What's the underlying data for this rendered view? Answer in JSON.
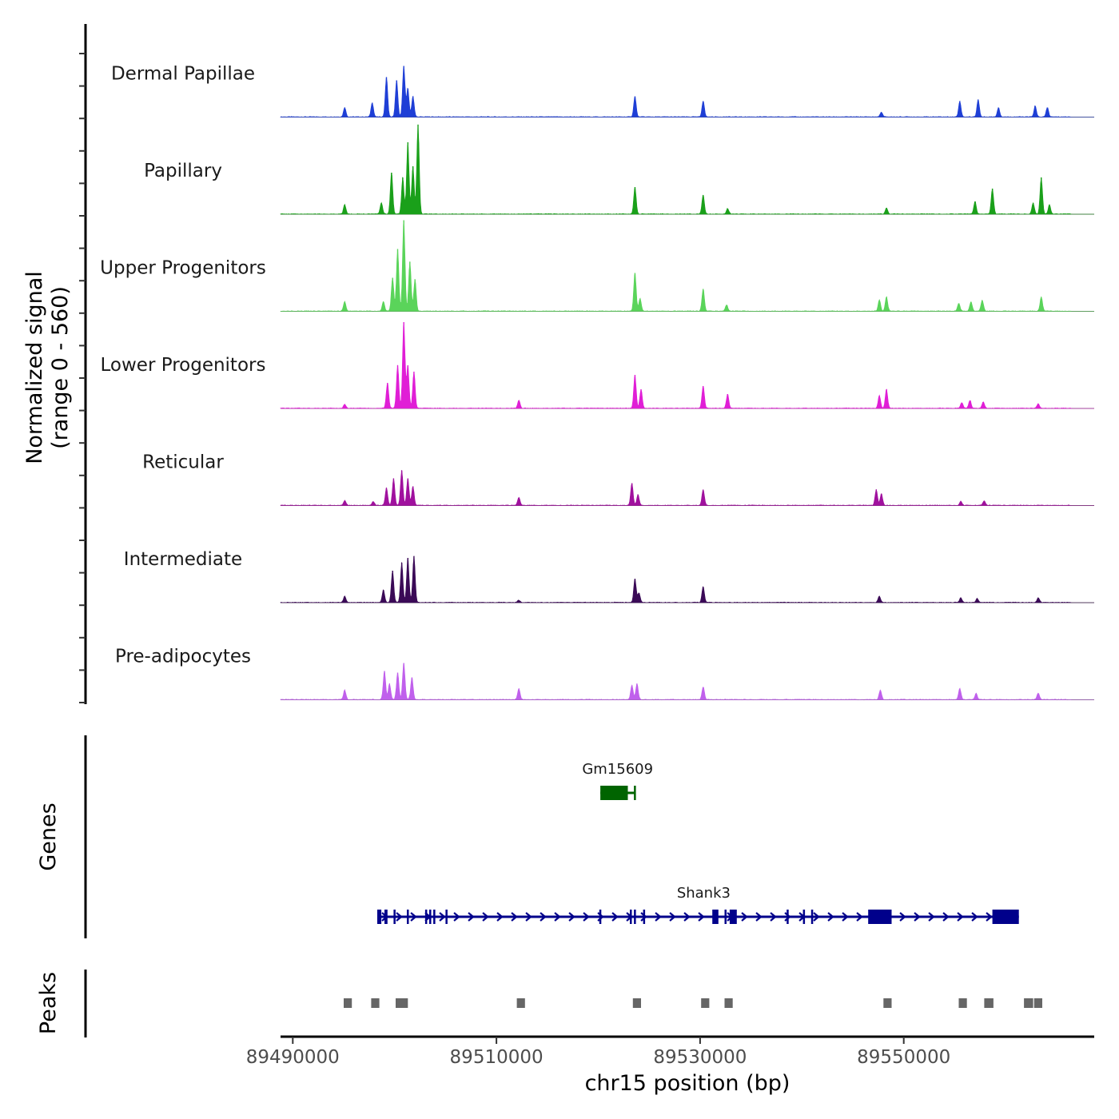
{
  "chart_data": {
    "type": "area",
    "title": "",
    "ylabel_line1": "Normalized signal",
    "ylabel_line2": "(range 0 - 560)",
    "ylim": [
      0,
      560
    ],
    "xlabel": "chr15 position (bp)",
    "xlim": [
      89488800,
      89568700
    ],
    "xticks": [
      89490000,
      89510000,
      89530000,
      89550000
    ],
    "xtick_labels": [
      "89490000",
      "89510000",
      "89530000",
      "89550000"
    ],
    "genes_label": "Genes",
    "peaks_label": "Peaks",
    "tracks": [
      {
        "name": "Dermal Papillae",
        "color": "#1f3fd6",
        "peaks": [
          [
            89495100,
            60
          ],
          [
            89497800,
            90
          ],
          [
            89499200,
            250
          ],
          [
            89500200,
            230
          ],
          [
            89500900,
            320
          ],
          [
            89501300,
            180
          ],
          [
            89501800,
            130
          ],
          [
            89523600,
            130
          ],
          [
            89530300,
            100
          ],
          [
            89547800,
            30
          ],
          [
            89555500,
            100
          ],
          [
            89557300,
            110
          ],
          [
            89559300,
            60
          ],
          [
            89562900,
            70
          ],
          [
            89564100,
            60
          ]
        ]
      },
      {
        "name": "Papillary",
        "color": "#1aa01a",
        "peaks": [
          [
            89495100,
            60
          ],
          [
            89498700,
            70
          ],
          [
            89499700,
            260
          ],
          [
            89500800,
            230
          ],
          [
            89501300,
            450
          ],
          [
            89501800,
            300
          ],
          [
            89502300,
            560
          ],
          [
            89523600,
            170
          ],
          [
            89530300,
            120
          ],
          [
            89532700,
            35
          ],
          [
            89548300,
            40
          ],
          [
            89557000,
            80
          ],
          [
            89558700,
            160
          ],
          [
            89562700,
            70
          ],
          [
            89563500,
            230
          ],
          [
            89564300,
            60
          ]
        ]
      },
      {
        "name": "Upper Progenitors",
        "color": "#5ad45a",
        "peaks": [
          [
            89495100,
            60
          ],
          [
            89498900,
            60
          ],
          [
            89499800,
            210
          ],
          [
            89500300,
            390
          ],
          [
            89500900,
            570
          ],
          [
            89501500,
            310
          ],
          [
            89502000,
            200
          ],
          [
            89523600,
            240
          ],
          [
            89524100,
            80
          ],
          [
            89530300,
            140
          ],
          [
            89532600,
            40
          ],
          [
            89547600,
            70
          ],
          [
            89548300,
            90
          ],
          [
            89555400,
            50
          ],
          [
            89556600,
            60
          ],
          [
            89557700,
            70
          ],
          [
            89563500,
            90
          ]
        ]
      },
      {
        "name": "Lower Progenitors",
        "color": "#e01ed6",
        "peaks": [
          [
            89495100,
            25
          ],
          [
            89499300,
            160
          ],
          [
            89500300,
            270
          ],
          [
            89500900,
            540
          ],
          [
            89501300,
            270
          ],
          [
            89501900,
            230
          ],
          [
            89512200,
            50
          ],
          [
            89523600,
            210
          ],
          [
            89524200,
            120
          ],
          [
            89530300,
            140
          ],
          [
            89532700,
            90
          ],
          [
            89547600,
            80
          ],
          [
            89548300,
            120
          ],
          [
            89555700,
            35
          ],
          [
            89556500,
            50
          ],
          [
            89557800,
            40
          ],
          [
            89563200,
            30
          ]
        ]
      },
      {
        "name": "Reticular",
        "color": "#a0119e",
        "peaks": [
          [
            89495100,
            30
          ],
          [
            89497900,
            25
          ],
          [
            89499200,
            110
          ],
          [
            89499900,
            170
          ],
          [
            89500700,
            220
          ],
          [
            89501300,
            170
          ],
          [
            89501800,
            120
          ],
          [
            89512200,
            50
          ],
          [
            89523300,
            140
          ],
          [
            89523900,
            70
          ],
          [
            89530300,
            100
          ],
          [
            89547300,
            100
          ],
          [
            89547800,
            75
          ],
          [
            89555600,
            25
          ],
          [
            89557900,
            30
          ]
        ]
      },
      {
        "name": "Intermediate",
        "color": "#3b0a57",
        "peaks": [
          [
            89495100,
            40
          ],
          [
            89498900,
            80
          ],
          [
            89499800,
            200
          ],
          [
            89500700,
            250
          ],
          [
            89501300,
            280
          ],
          [
            89501900,
            290
          ],
          [
            89512200,
            15
          ],
          [
            89523600,
            150
          ],
          [
            89524000,
            60
          ],
          [
            89530300,
            100
          ],
          [
            89547600,
            40
          ],
          [
            89555600,
            30
          ],
          [
            89557200,
            25
          ],
          [
            89563200,
            30
          ]
        ]
      },
      {
        "name": "Pre-adipocytes",
        "color": "#c060ec",
        "peaks": [
          [
            89495100,
            60
          ],
          [
            89499000,
            180
          ],
          [
            89499500,
            100
          ],
          [
            89500300,
            170
          ],
          [
            89500900,
            230
          ],
          [
            89501700,
            140
          ],
          [
            89512200,
            70
          ],
          [
            89523300,
            90
          ],
          [
            89523800,
            100
          ],
          [
            89530300,
            80
          ],
          [
            89547700,
            60
          ],
          [
            89555500,
            70
          ],
          [
            89557100,
            40
          ],
          [
            89563200,
            40
          ]
        ]
      }
    ],
    "genes": [
      {
        "name": "Gm15609",
        "color": "#006400",
        "strand": "-",
        "start": 89520200,
        "end": 89523600,
        "exons": [
          [
            89520200,
            89522900
          ],
          [
            89523500,
            89523600
          ]
        ]
      },
      {
        "name": "Shank3",
        "color": "#00008b",
        "strand": "+",
        "start": 89498300,
        "end": 89561300,
        "exons": [
          [
            89498300,
            89498700
          ],
          [
            89499000,
            89499300
          ],
          [
            89499900,
            89500100
          ],
          [
            89501200,
            89501300
          ],
          [
            89503000,
            89503200
          ],
          [
            89503400,
            89503600
          ],
          [
            89503800,
            89504000
          ],
          [
            89505000,
            89505200
          ],
          [
            89520100,
            89520300
          ],
          [
            89523100,
            89523300
          ],
          [
            89523500,
            89523700
          ],
          [
            89524400,
            89524500
          ],
          [
            89531200,
            89531800
          ],
          [
            89532400,
            89532600
          ],
          [
            89532900,
            89533600
          ],
          [
            89538500,
            89538600
          ],
          [
            89540100,
            89540300
          ],
          [
            89540900,
            89541000
          ],
          [
            89546500,
            89548800
          ],
          [
            89558700,
            89561300
          ]
        ]
      }
    ],
    "peak_regions": [
      [
        89495000,
        89495800
      ],
      [
        89497700,
        89498500
      ],
      [
        89500100,
        89501300
      ],
      [
        89512000,
        89512800
      ],
      [
        89523400,
        89524200
      ],
      [
        89530100,
        89530900
      ],
      [
        89532400,
        89533200
      ],
      [
        89548000,
        89548800
      ],
      [
        89555400,
        89556200
      ],
      [
        89557900,
        89558800
      ],
      [
        89561800,
        89562700
      ],
      [
        89562800,
        89563600
      ]
    ]
  }
}
